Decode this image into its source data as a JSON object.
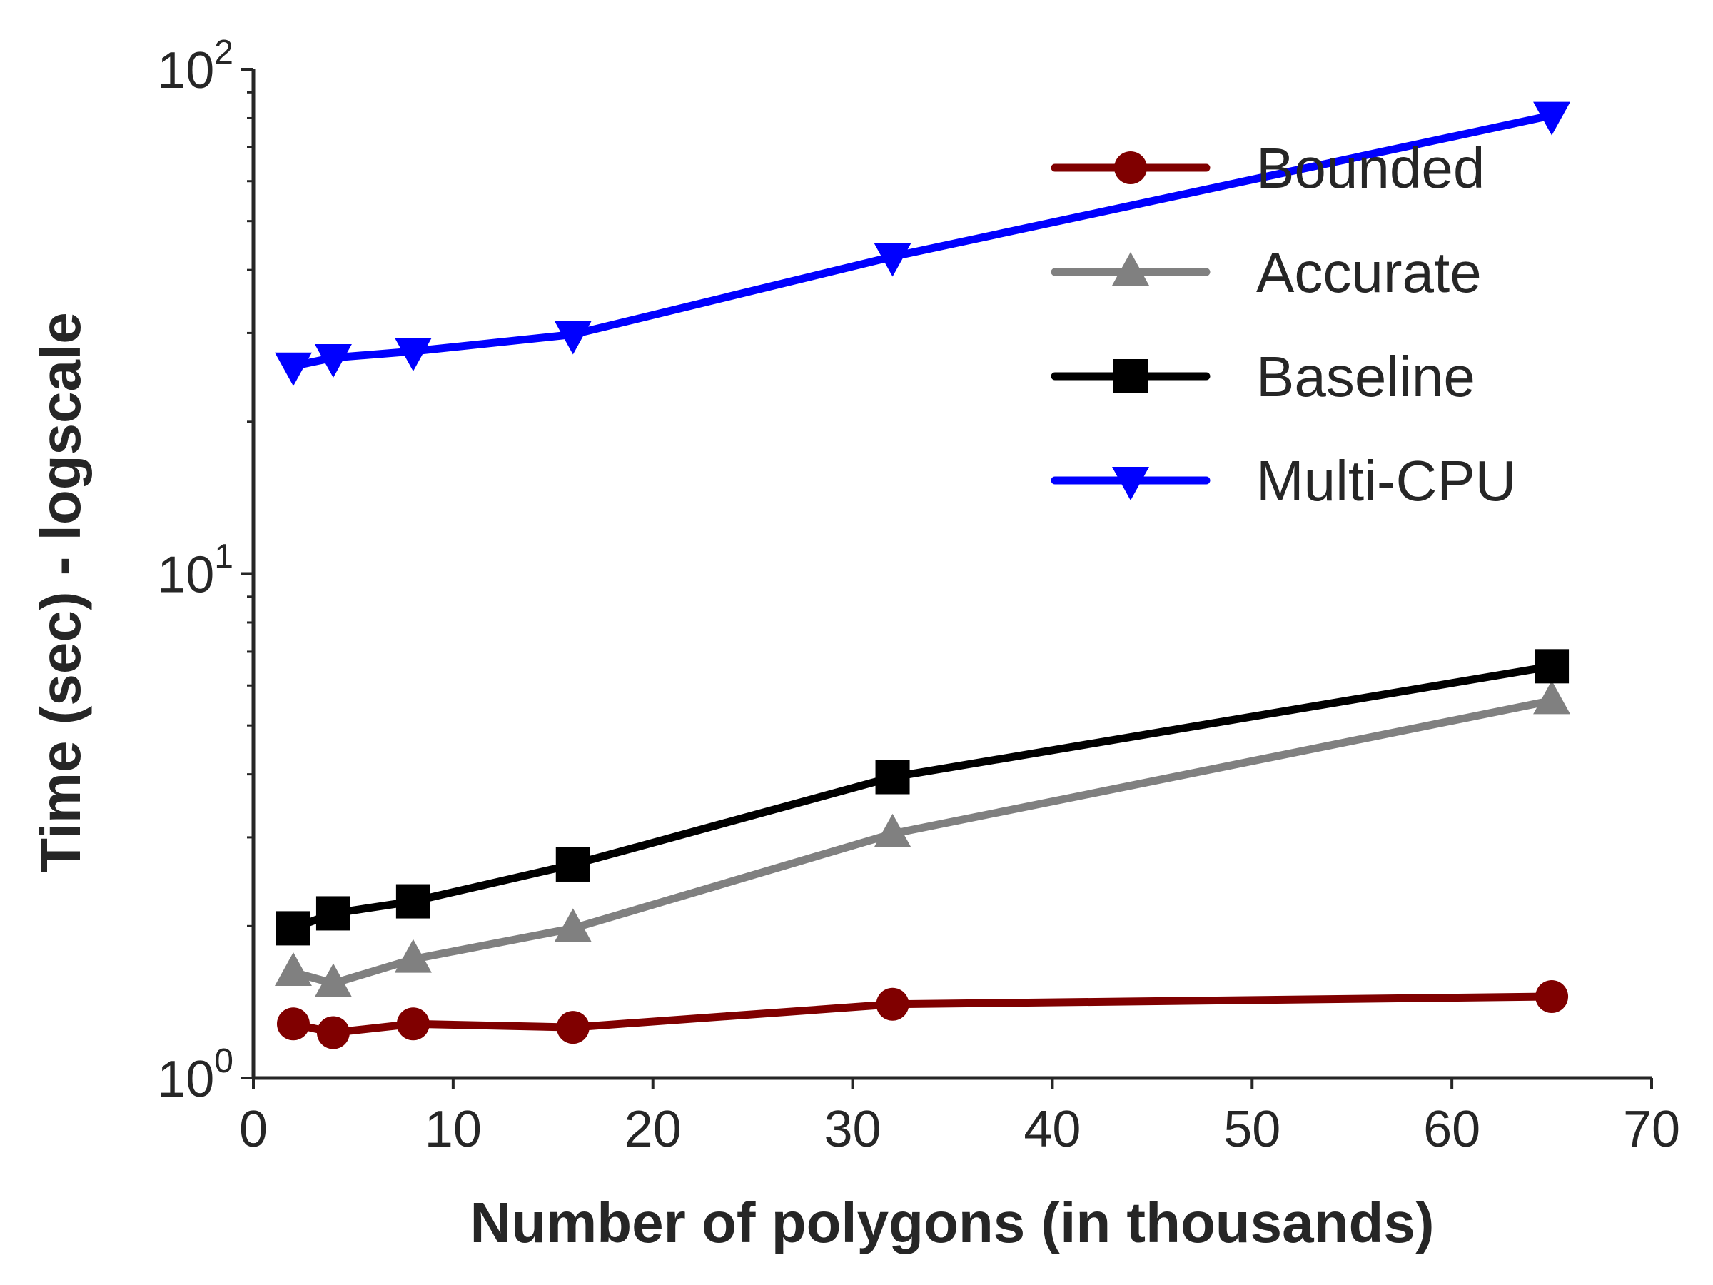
{
  "chart_data": {
    "type": "line",
    "title": "",
    "xlabel": "Number of polygons (in thousands)",
    "ylabel": "Time (sec) - logscale",
    "xlim": [
      0,
      70
    ],
    "ylim": [
      1,
      100
    ],
    "yscale": "log",
    "x_ticks": [
      "0",
      "10",
      "20",
      "30",
      "40",
      "50",
      "60",
      "70"
    ],
    "y_ticks": [
      {
        "base": "10",
        "exp": "0",
        "value": 1
      },
      {
        "base": "10",
        "exp": "1",
        "value": 10
      },
      {
        "base": "10",
        "exp": "2",
        "value": 100
      }
    ],
    "grid": false,
    "legend_position": "top-right",
    "x": [
      2,
      4,
      8,
      16,
      32,
      65
    ],
    "series": [
      {
        "name": "Bounded",
        "color": "#800000",
        "marker": "circle",
        "values": [
          1.28,
          1.23,
          1.28,
          1.26,
          1.4,
          1.45
        ]
      },
      {
        "name": "Accurate",
        "color": "#808080",
        "marker": "triangle-up",
        "values": [
          1.62,
          1.54,
          1.72,
          1.98,
          3.05,
          5.6
        ]
      },
      {
        "name": "Baseline",
        "color": "#000000",
        "marker": "square",
        "values": [
          1.98,
          2.12,
          2.24,
          2.65,
          3.95,
          6.55
        ]
      },
      {
        "name": "Multi-CPU",
        "color": "#0000ff",
        "marker": "triangle-down",
        "values": [
          25.8,
          26.8,
          27.6,
          29.8,
          42.5,
          81.0
        ]
      }
    ]
  }
}
